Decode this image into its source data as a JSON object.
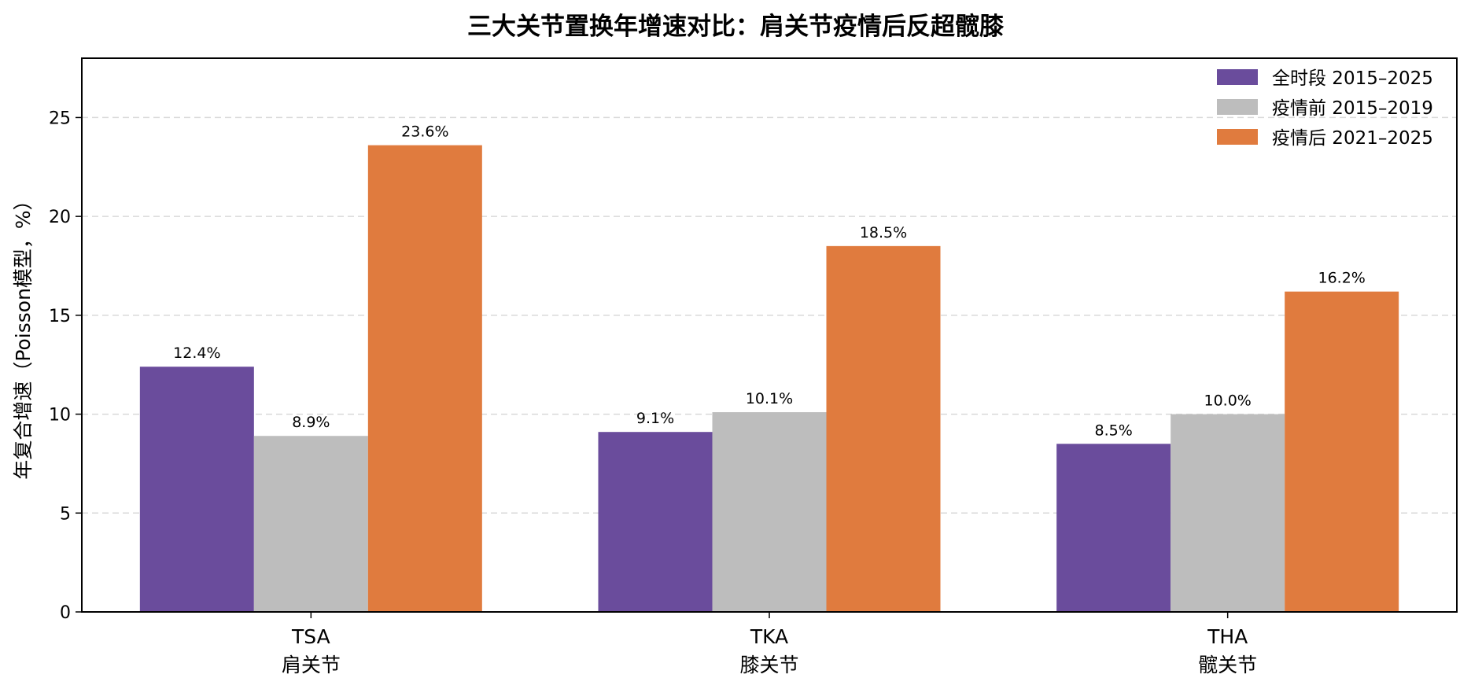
{
  "chart_data": {
    "type": "bar",
    "title": "三大关节置换年增速对比：肩关节疫情后反超髋膝",
    "ylabel": "年复合增速（Poisson模型，%）",
    "xlabel": "",
    "ylim": [
      0,
      28
    ],
    "yticks": [
      0,
      5,
      10,
      15,
      20,
      25
    ],
    "grid": "y-dashed",
    "legend_position": "top-right",
    "categories": [
      {
        "code": "TSA",
        "name": "肩关节"
      },
      {
        "code": "TKA",
        "name": "膝关节"
      },
      {
        "code": "THA",
        "name": "髋关节"
      }
    ],
    "series": [
      {
        "name": "全时段 2015–2025",
        "color": "#6a4c9c",
        "values": [
          12.4,
          9.1,
          8.5
        ],
        "labels": [
          "12.4%",
          "9.1%",
          "8.5%"
        ]
      },
      {
        "name": "疫情前 2015–2019",
        "color": "#bdbdbd",
        "values": [
          8.9,
          10.1,
          10.0
        ],
        "labels": [
          "8.9%",
          "10.1%",
          "10.0%"
        ]
      },
      {
        "name": "疫情后 2021–2025",
        "color": "#e07b3e",
        "values": [
          23.6,
          18.5,
          16.2
        ],
        "labels": [
          "23.6%",
          "18.5%",
          "16.2%"
        ]
      }
    ]
  }
}
